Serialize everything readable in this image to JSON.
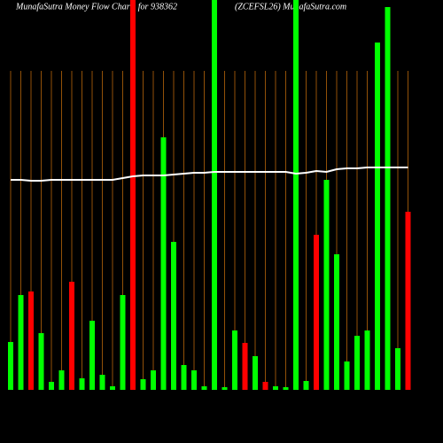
{
  "chart_data": {
    "type": "bar",
    "title": "MunafaSutra  Money Flow  Charts for 938362",
    "subtitle": "(ZCEFSL26) MunafaSutra.com",
    "categories": [
      null,
      null,
      null,
      null,
      null,
      null,
      null,
      null,
      null,
      null,
      null,
      null,
      null,
      null,
      null,
      null,
      null,
      null,
      null,
      null,
      null,
      null,
      null,
      null,
      null,
      null,
      null,
      null,
      null,
      null,
      null,
      null,
      null,
      null,
      null,
      null,
      null,
      null,
      null,
      null
    ],
    "values": [
      54,
      107,
      111,
      64,
      9,
      22,
      122,
      13,
      78,
      17,
      4,
      107,
      440,
      12,
      22,
      285,
      167,
      28,
      22,
      4,
      440,
      3,
      67,
      53,
      38,
      9,
      4,
      3,
      440,
      10,
      175,
      237,
      153,
      32,
      61,
      67,
      392,
      432,
      47,
      201
    ],
    "colors": [
      "#00ff00",
      "#00ff00",
      "#ff0000",
      "#00ff00",
      "#00ff00",
      "#00ff00",
      "#ff0000",
      "#00ff00",
      "#00ff00",
      "#00ff00",
      "#00ff00",
      "#00ff00",
      "#ff0000",
      "#00ff00",
      "#00ff00",
      "#00ff00",
      "#00ff00",
      "#00ff00",
      "#00ff00",
      "#00ff00",
      "#00ff00",
      "#00ff00",
      "#00ff00",
      "#ff0000",
      "#00ff00",
      "#ff0000",
      "#00ff00",
      "#00ff00",
      "#00ff00",
      "#00ff00",
      "#ff0000",
      "#00ff00",
      "#00ff00",
      "#00ff00",
      "#00ff00",
      "#00ff00",
      "#00ff00",
      "#00ff00",
      "#00ff00",
      "#ff0000"
    ],
    "line": {
      "color": "#ffffff",
      "values": [
        237,
        237,
        236,
        236,
        237,
        237,
        237,
        237,
        237,
        237,
        237,
        239,
        241,
        242,
        242,
        242,
        243,
        244,
        245,
        245,
        246,
        246,
        246,
        246,
        246,
        246,
        246,
        246,
        244,
        245,
        247,
        246,
        249,
        250,
        250,
        251,
        251,
        251,
        251,
        251
      ]
    },
    "ylim": [
      0,
      440
    ],
    "grid": true,
    "grid_color": "#b8660b"
  }
}
